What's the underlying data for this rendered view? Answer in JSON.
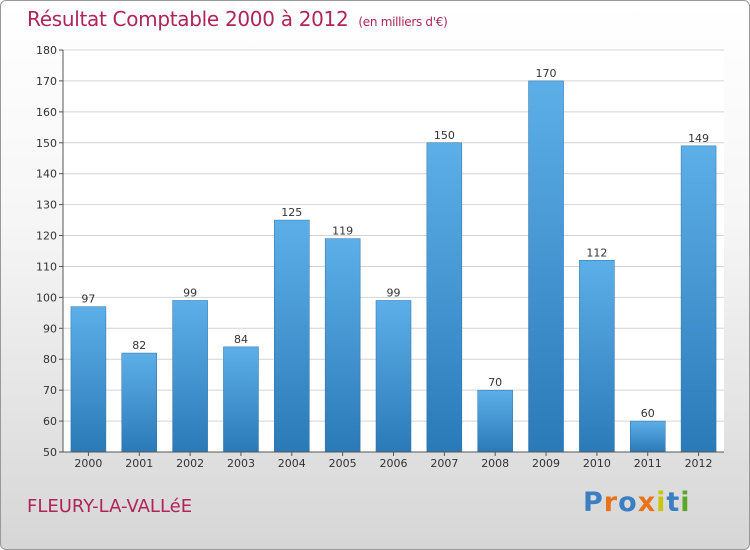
{
  "title": "Résultat Comptable 2000 à 2012",
  "subtitle": "(en milliers d'€)",
  "commune": "FLEURY-LA-VALLéE",
  "logo": {
    "text": "Proxiti",
    "colors": [
      "#3a7fc1",
      "#e8731a",
      "#3a7fc1",
      "#e8731a",
      "#c8c80a",
      "#3a7fc1",
      "#5aa82a"
    ]
  },
  "colors": {
    "title": "#b0245a",
    "bar_top": "#5dafe8",
    "bar_bottom": "#2a7ab8",
    "grid": "#d4d4d4",
    "axis": "#555555"
  },
  "chart_data": {
    "type": "bar",
    "title": "Résultat Comptable 2000 à 2012",
    "subtitle": "(en milliers d'€)",
    "categories": [
      "2000",
      "2001",
      "2002",
      "2003",
      "2004",
      "2005",
      "2006",
      "2007",
      "2008",
      "2009",
      "2010",
      "2011",
      "2012"
    ],
    "values": [
      97,
      82,
      99,
      84,
      125,
      119,
      99,
      150,
      70,
      170,
      112,
      60,
      149
    ],
    "ylim": [
      50,
      180
    ],
    "yticks": [
      50,
      60,
      70,
      80,
      90,
      100,
      110,
      120,
      130,
      140,
      150,
      160,
      170,
      180
    ],
    "grid": true,
    "data_labels": true
  }
}
